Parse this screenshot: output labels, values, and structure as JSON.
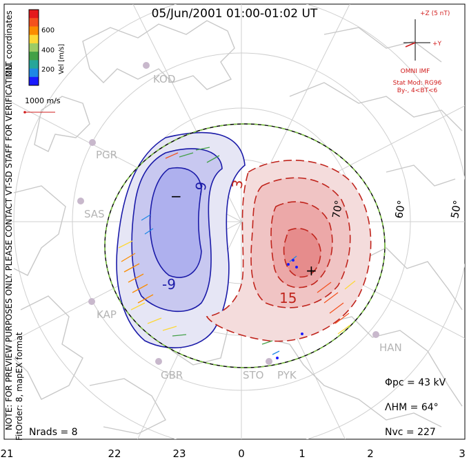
{
  "title": "05/Jun/2001 01:00-01:02 UT",
  "side_note_line1": "NOTE: FOR PREVIEW PURPOSES ONLY. PLEASE CONTACT VT-SD STAFF FOR VERIFICATION.",
  "side_note_line2": "FitOrder: 8, mapEX format",
  "coord_label": "MLT coordinates",
  "colorbar": {
    "label": "Vel [m/s]",
    "ticks": [
      "600",
      "400",
      "200"
    ],
    "colors": [
      "#e41a1c",
      "#f4511e",
      "#fb8c00",
      "#fdd835",
      "#9ccc65",
      "#43a047",
      "#26a69a",
      "#1e88e5",
      "#1a1aff"
    ]
  },
  "scale_vector": "1000 m/s",
  "imf": {
    "z_label": "+Z (5 nT)",
    "y_label": "+Y",
    "source": "OMNI IMF",
    "model": "Stat Mod: RG96",
    "condition": "By-, 4<BT<6"
  },
  "latitude_labels": [
    "70°",
    "60°",
    "50°"
  ],
  "stations": [
    "KOD",
    "PGR",
    "SAS",
    "KAP",
    "GBR",
    "STO",
    "PYK",
    "HAN"
  ],
  "contour_labels": {
    "neg1": "-9",
    "neg2": "-9",
    "pos1": "3",
    "pos2": "15",
    "min_marker": "−",
    "max_marker": "+"
  },
  "stats": {
    "phi_pc": "Φpc = 43 kV",
    "lambda_hm": "ΛHM = 64°",
    "n_vc": "Nvc = 227",
    "n_rads": "Nrads = 8"
  },
  "mlt_axis": [
    "21",
    "22",
    "23",
    "0",
    "1",
    "2",
    "3"
  ],
  "colors": {
    "negative_cell": "#1a1aa8",
    "positive_cell": "#c0241c",
    "coastline": "#c8c8c8",
    "grid": "#cfcfcf",
    "imf": "#d11b1b",
    "hm_boundary": "#7cc242"
  }
}
